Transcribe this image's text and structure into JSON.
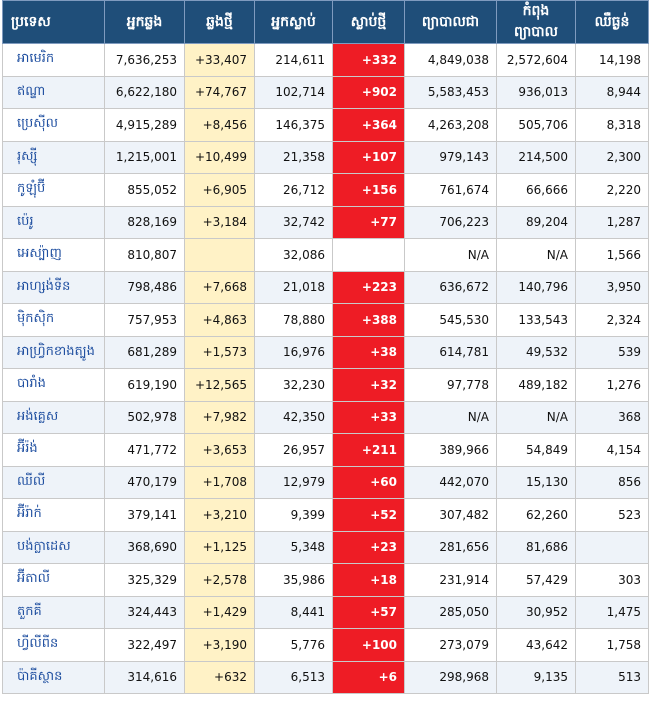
{
  "headers": [
    "ប្រទេស",
    "អ្នកឆ្លង",
    "ឆ្លងថ្មី",
    "អ្នកស្លាប់",
    "ស្លាប់ថ្មី",
    "ព្យាបាលជា",
    "កំពុងព្យាបាល",
    "ឈឺធ្ងន់"
  ],
  "rows": [
    {
      "country": "អាមេរិក",
      "cases": "7,636,253",
      "new_cases": "+33,407",
      "deaths": "214,611",
      "new_deaths": "+332",
      "recovered": "4,849,038",
      "active": "2,572,604",
      "critical": "14,198"
    },
    {
      "country": "ឥណ្ឌា",
      "cases": "6,622,180",
      "new_cases": "+74,767",
      "deaths": "102,714",
      "new_deaths": "+902",
      "recovered": "5,583,453",
      "active": "936,013",
      "critical": "8,944"
    },
    {
      "country": "ប្រេស៊ីល",
      "cases": "4,915,289",
      "new_cases": "+8,456",
      "deaths": "146,375",
      "new_deaths": "+364",
      "recovered": "4,263,208",
      "active": "505,706",
      "critical": "8,318"
    },
    {
      "country": "រុស្ស៊ី",
      "cases": "1,215,001",
      "new_cases": "+10,499",
      "deaths": "21,358",
      "new_deaths": "+107",
      "recovered": "979,143",
      "active": "214,500",
      "critical": "2,300"
    },
    {
      "country": "កូឡុំប៊ី",
      "cases": "855,052",
      "new_cases": "+6,905",
      "deaths": "26,712",
      "new_deaths": "+156",
      "recovered": "761,674",
      "active": "66,666",
      "critical": "2,220"
    },
    {
      "country": "ប៉េរូ",
      "cases": "828,169",
      "new_cases": "+3,184",
      "deaths": "32,742",
      "new_deaths": "+77",
      "recovered": "706,223",
      "active": "89,204",
      "critical": "1,287"
    },
    {
      "country": "អេស្ប៉ាញ",
      "cases": "810,807",
      "new_cases": "",
      "deaths": "32,086",
      "new_deaths": "",
      "recovered": "N/A",
      "active": "N/A",
      "critical": "1,566"
    },
    {
      "country": "អាហ្សង់ទីន",
      "cases": "798,486",
      "new_cases": "+7,668",
      "deaths": "21,018",
      "new_deaths": "+223",
      "recovered": "636,672",
      "active": "140,796",
      "critical": "3,950"
    },
    {
      "country": "ម៉ិកស៊ិក",
      "cases": "757,953",
      "new_cases": "+4,863",
      "deaths": "78,880",
      "new_deaths": "+388",
      "recovered": "545,530",
      "active": "133,543",
      "critical": "2,324"
    },
    {
      "country": "អាហ្វ្រិកខាងត្បូង",
      "cases": "681,289",
      "new_cases": "+1,573",
      "deaths": "16,976",
      "new_deaths": "+38",
      "recovered": "614,781",
      "active": "49,532",
      "critical": "539"
    },
    {
      "country": "បារាំង",
      "cases": "619,190",
      "new_cases": "+12,565",
      "deaths": "32,230",
      "new_deaths": "+32",
      "recovered": "97,778",
      "active": "489,182",
      "critical": "1,276"
    },
    {
      "country": "អង់គ្លេស",
      "cases": "502,978",
      "new_cases": "+7,982",
      "deaths": "42,350",
      "new_deaths": "+33",
      "recovered": "N/A",
      "active": "N/A",
      "critical": "368"
    },
    {
      "country": "អ៊ីរ៉ង់",
      "cases": "471,772",
      "new_cases": "+3,653",
      "deaths": "26,957",
      "new_deaths": "+211",
      "recovered": "389,966",
      "active": "54,849",
      "critical": "4,154"
    },
    {
      "country": "ឈីលី",
      "cases": "470,179",
      "new_cases": "+1,708",
      "deaths": "12,979",
      "new_deaths": "+60",
      "recovered": "442,070",
      "active": "15,130",
      "critical": "856"
    },
    {
      "country": "អ៊ីរ៉ាក់",
      "cases": "379,141",
      "new_cases": "+3,210",
      "deaths": "9,399",
      "new_deaths": "+52",
      "recovered": "307,482",
      "active": "62,260",
      "critical": "523"
    },
    {
      "country": "បង់ក្លាដេស",
      "cases": "368,690",
      "new_cases": "+1,125",
      "deaths": "5,348",
      "new_deaths": "+23",
      "recovered": "281,656",
      "active": "81,686",
      "critical": ""
    },
    {
      "country": "អ៊ីតាលី",
      "cases": "325,329",
      "new_cases": "+2,578",
      "deaths": "35,986",
      "new_deaths": "+18",
      "recovered": "231,914",
      "active": "57,429",
      "critical": "303"
    },
    {
      "country": "តួកគី",
      "cases": "324,443",
      "new_cases": "+1,429",
      "deaths": "8,441",
      "new_deaths": "+57",
      "recovered": "285,050",
      "active": "30,952",
      "critical": "1,475"
    },
    {
      "country": "ហ្វីលីពីន",
      "cases": "322,497",
      "new_cases": "+3,190",
      "deaths": "5,776",
      "new_deaths": "+100",
      "recovered": "273,079",
      "active": "43,642",
      "critical": "1,758"
    },
    {
      "country": "ប៉ាគីស្ថាន",
      "cases": "314,616",
      "new_cases": "+632",
      "deaths": "6,513",
      "new_deaths": "+6",
      "recovered": "298,968",
      "active": "9,135",
      "critical": "513"
    }
  ]
}
